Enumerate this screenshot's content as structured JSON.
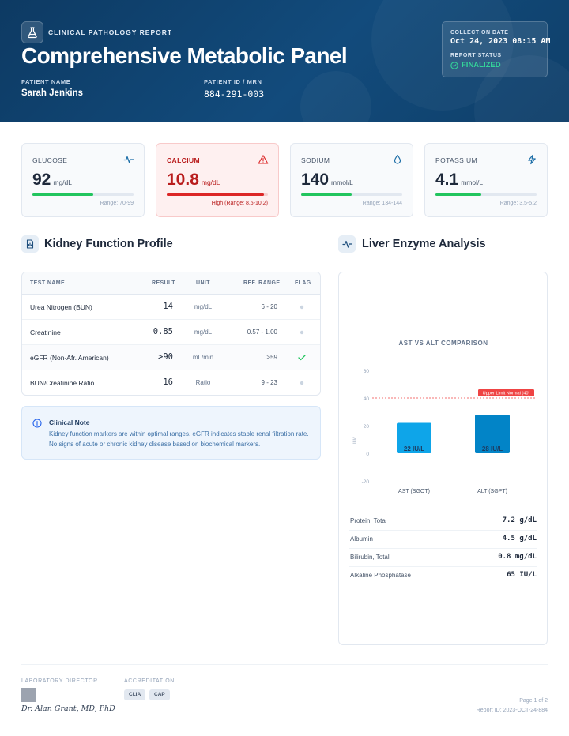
{
  "header": {
    "kicker": "CLINICAL PATHOLOGY REPORT",
    "title": "Comprehensive Metabolic Panel",
    "patient_name_label": "PATIENT NAME",
    "patient_name": "Sarah Jenkins",
    "patient_id_label": "PATIENT ID / MRN",
    "patient_id": "884-291-003",
    "collection_date_label": "COLLECTION DATE",
    "collection_date": "Oct 24, 2023 08:15 AM",
    "report_status_label": "REPORT STATUS",
    "report_status": "FINALIZED"
  },
  "vitals": [
    {
      "label": "GLUCOSE",
      "value": "92",
      "unit": "mg/dL",
      "range": "Range: 70-99",
      "level": 0.6,
      "status": "normal",
      "icon": "pulse-icon",
      "color": "#22c55e"
    },
    {
      "label": "CALCIUM",
      "value": "10.8",
      "unit": "mg/dL",
      "range": "High (Range: 8.5-10.2)",
      "level": 0.96,
      "status": "high",
      "icon": "warning-icon",
      "color": "#dc2626"
    },
    {
      "label": "SODIUM",
      "value": "140",
      "unit": "mmol/L",
      "range": "Range: 134-144",
      "level": 0.5,
      "status": "normal",
      "icon": "droplet-icon",
      "color": "#22c55e"
    },
    {
      "label": "POTASSIUM",
      "value": "4.1",
      "unit": "mmol/L",
      "range": "Range: 3.5-5.2",
      "level": 0.45,
      "status": "normal",
      "icon": "bolt-icon",
      "color": "#22c55e"
    }
  ],
  "kidney": {
    "title": "Kidney Function Profile",
    "columns": [
      "TEST NAME",
      "RESULT",
      "UNIT",
      "REF. RANGE",
      "FLAG"
    ],
    "rows": [
      {
        "name": "Urea Nitrogen (BUN)",
        "result": "14",
        "unit": "mg/dL",
        "ref": "6 - 20",
        "flag": "dot"
      },
      {
        "name": "Creatinine",
        "result": "0.85",
        "unit": "mg/dL",
        "ref": "0.57 - 1.00",
        "flag": "dot"
      },
      {
        "name": "eGFR (Non-Afr. American)",
        "result": ">90",
        "unit": "mL/min",
        "ref": ">59",
        "flag": "check"
      },
      {
        "name": "BUN/Creatinine Ratio",
        "result": "16",
        "unit": "Ratio",
        "ref": "9 - 23",
        "flag": "dot"
      }
    ],
    "note_title": "Clinical Note",
    "note_text": "Kidney function markers are within optimal ranges. eGFR indicates stable renal filtration rate. No signs of acute or chronic kidney disease based on biochemical markers."
  },
  "liver": {
    "title": "Liver Enzyme Analysis",
    "extra": [
      {
        "name": "Protein, Total",
        "value": "7.2 g/dL"
      },
      {
        "name": "Albumin",
        "value": "4.5 g/dL"
      },
      {
        "name": "Bilirubin, Total",
        "value": "0.8 mg/dL"
      },
      {
        "name": "Alkaline Phosphatase",
        "value": "65 IU/L"
      }
    ]
  },
  "chart_data": {
    "type": "bar",
    "title": "AST VS ALT COMPARISON",
    "ylabel": "IU/L",
    "categories": [
      "AST (SGOT)",
      "ALT (SGPT)"
    ],
    "values": [
      22,
      28
    ],
    "data_labels": [
      "22 IU/L",
      "28 IU/L"
    ],
    "colors": [
      "#0ea5e9",
      "#0284c7"
    ],
    "ylim": [
      -20,
      60
    ],
    "yticks": [
      -20,
      0,
      20,
      40,
      60
    ],
    "reference_line": {
      "value": 40,
      "label": "Upper Limit Normal (40)",
      "color": "#ef4444"
    },
    "grid": false
  },
  "footer": {
    "director_label": "LABORATORY DIRECTOR",
    "director_name": "Dr. Alan Grant, MD, PhD",
    "accreditation_label": "ACCREDITATION",
    "badges": [
      "CLIA",
      "CAP"
    ],
    "page": "Page 1 of 2",
    "report_id": "Report ID: 2023-OCT-24-884"
  }
}
